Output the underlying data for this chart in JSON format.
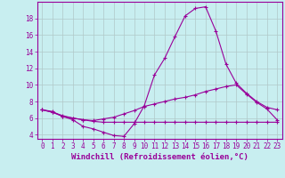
{
  "x": [
    0,
    1,
    2,
    3,
    4,
    5,
    6,
    7,
    8,
    9,
    10,
    11,
    12,
    13,
    14,
    15,
    16,
    17,
    18,
    19,
    20,
    21,
    22,
    23
  ],
  "line1": [
    7.0,
    6.7,
    6.2,
    5.8,
    5.0,
    4.7,
    4.3,
    3.9,
    3.8,
    5.3,
    7.5,
    11.2,
    13.2,
    15.8,
    18.3,
    19.2,
    19.4,
    16.5,
    12.5,
    10.2,
    9.0,
    8.0,
    7.3,
    7.0
  ],
  "line2": [
    7.0,
    6.8,
    6.2,
    6.0,
    5.8,
    5.7,
    5.9,
    6.1,
    6.5,
    6.9,
    7.4,
    7.7,
    8.0,
    8.3,
    8.5,
    8.8,
    9.2,
    9.5,
    9.8,
    10.0,
    8.9,
    7.9,
    7.1,
    5.8
  ],
  "line3": [
    7.0,
    6.7,
    6.3,
    6.0,
    5.8,
    5.6,
    5.5,
    5.5,
    5.5,
    5.5,
    5.5,
    5.5,
    5.5,
    5.5,
    5.5,
    5.5,
    5.5,
    5.5,
    5.5,
    5.5,
    5.5,
    5.5,
    5.5,
    5.5
  ],
  "line_color": "#990099",
  "bg_color": "#c8eef0",
  "grid_color": "#b0c8c8",
  "xlabel": "Windchill (Refroidissement éolien,°C)",
  "xlim": [
    -0.5,
    23.5
  ],
  "ylim": [
    3.5,
    20.0
  ],
  "yticks": [
    4,
    6,
    8,
    10,
    12,
    14,
    16,
    18
  ],
  "xticks": [
    0,
    1,
    2,
    3,
    4,
    5,
    6,
    7,
    8,
    9,
    10,
    11,
    12,
    13,
    14,
    15,
    16,
    17,
    18,
    19,
    20,
    21,
    22,
    23
  ],
  "xlabel_fontsize": 6.5,
  "tick_fontsize": 5.5
}
